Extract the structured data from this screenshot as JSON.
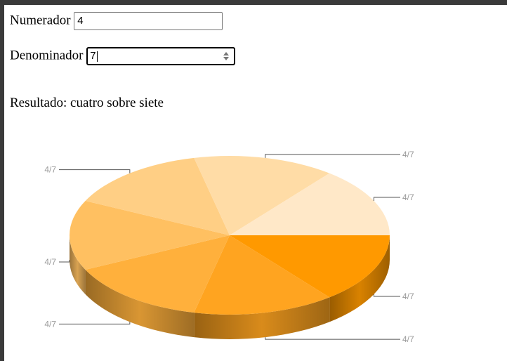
{
  "form": {
    "numerator_label": "Numerador",
    "numerator_value": "4",
    "denominator_label": "Denominador",
    "denominator_value": "7",
    "result_text": "Resultado: cuatro sobre siete"
  },
  "chart_data": {
    "type": "pie",
    "style": "3d",
    "slices": [
      {
        "label": "4/7",
        "value": 4,
        "color": "#FF9900"
      },
      {
        "label": "4/7",
        "value": 4,
        "color": "#FFA420"
      },
      {
        "label": "4/7",
        "value": 4,
        "color": "#FFB03C"
      },
      {
        "label": "4/7",
        "value": 4,
        "color": "#FFC061"
      },
      {
        "label": "4/7",
        "value": 4,
        "color": "#FFCF85"
      },
      {
        "label": "4/7",
        "value": 4,
        "color": "#FFDCA6"
      },
      {
        "label": "4/7",
        "value": 4,
        "color": "#FFE8C8"
      }
    ],
    "label_color": "#999999",
    "title": "",
    "legend": "none"
  }
}
